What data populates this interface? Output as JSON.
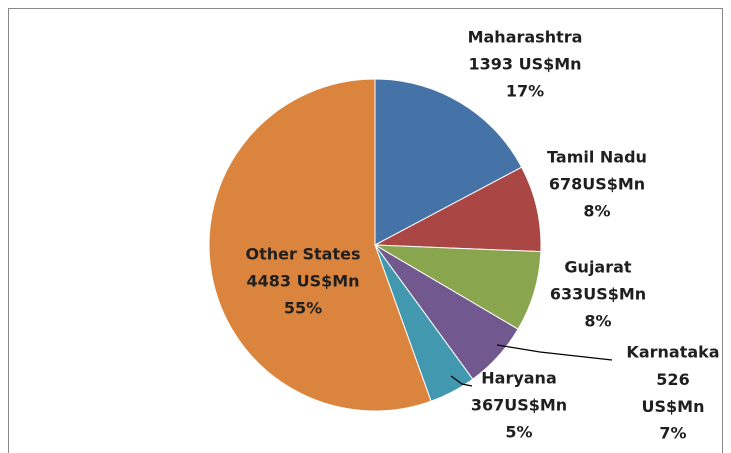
{
  "chart_data": {
    "type": "pie",
    "categories": [
      "Maharashtra",
      "Tamil Nadu",
      "Gujarat",
      "Karnataka",
      "Haryana",
      "Other States"
    ],
    "values": [
      1393,
      678,
      633,
      526,
      367,
      4483
    ],
    "value_labels": [
      "1393 US$Mn",
      "678US$Mn",
      "633US$Mn",
      "526 US$Mn",
      "367US$Mn",
      "4483 US$Mn"
    ],
    "percent_labels": [
      "17%",
      "8%",
      "8%",
      "7%",
      "5%",
      "55%"
    ],
    "colors": [
      "#4572a7",
      "#aa4643",
      "#89a54e",
      "#71588f",
      "#4198af",
      "#db843d"
    ],
    "start_angle": 0,
    "direction": "clockwise"
  }
}
